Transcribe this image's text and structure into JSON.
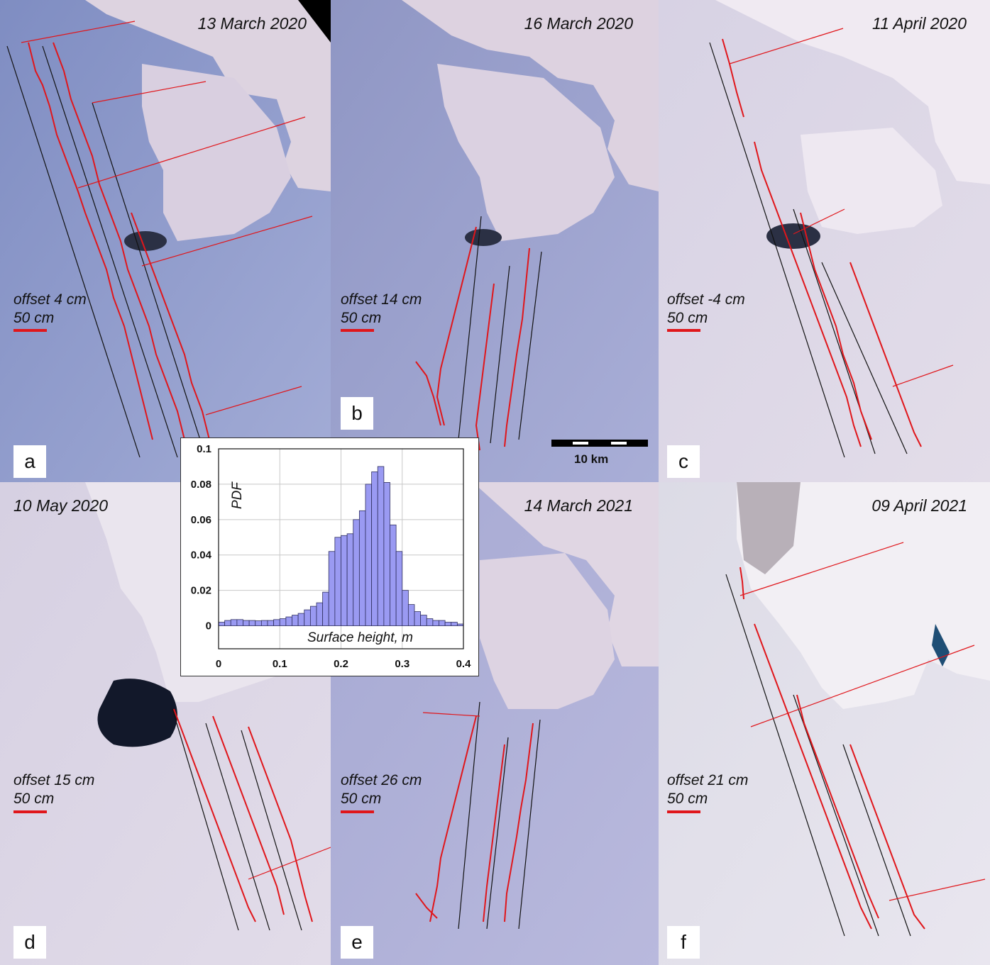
{
  "panels": [
    {
      "id": "a",
      "date": "13 March 2020",
      "offset": "offset 4 cm",
      "scale": "50 cm"
    },
    {
      "id": "b",
      "date": "16 March 2020",
      "offset": "offset 14 cm",
      "scale": "50 cm"
    },
    {
      "id": "c",
      "date": "11 April 2020",
      "offset": "offset -4 cm",
      "scale": "50 cm"
    },
    {
      "id": "d",
      "date": "10 May 2020",
      "offset": "offset 15 cm",
      "scale": "50 cm"
    },
    {
      "id": "e",
      "date": "14 March 2021",
      "offset": "offset 26 cm",
      "scale": "50 cm"
    },
    {
      "id": "f",
      "date": "09 April 2021",
      "offset": "offset 21 cm",
      "scale": "50 cm"
    }
  ],
  "map_scale_label": "10 km",
  "colors": {
    "track_profile": "#e0161b",
    "track_line": "#111111",
    "histogram_fill": "#9a9af2",
    "histogram_edge": "#303060"
  },
  "chart_data": {
    "type": "bar",
    "title": "",
    "xlabel": "Surface height, m",
    "ylabel": "PDF",
    "xlim": [
      0,
      0.4
    ],
    "ylim": [
      -0.013,
      0.1
    ],
    "xticks": [
      "0",
      "0.1",
      "0.2",
      "0.3",
      "0.4"
    ],
    "yticks": [
      "0",
      "0.02",
      "0.04",
      "0.06",
      "0.08",
      "0.1"
    ],
    "grid": true,
    "bin_width": 0.01,
    "bin_starts": [
      0,
      0.01,
      0.02,
      0.03,
      0.04,
      0.05,
      0.06,
      0.07,
      0.08,
      0.09,
      0.1,
      0.11,
      0.12,
      0.13,
      0.14,
      0.15,
      0.16,
      0.17,
      0.18,
      0.19,
      0.2,
      0.21,
      0.22,
      0.23,
      0.24,
      0.25,
      0.26,
      0.27,
      0.28,
      0.29,
      0.3,
      0.31,
      0.32,
      0.33,
      0.34,
      0.35,
      0.36,
      0.37,
      0.38,
      0.39
    ],
    "values": [
      0.002,
      0.003,
      0.0035,
      0.0035,
      0.003,
      0.003,
      0.0028,
      0.003,
      0.003,
      0.0035,
      0.004,
      0.005,
      0.006,
      0.007,
      0.009,
      0.011,
      0.013,
      0.019,
      0.042,
      0.05,
      0.051,
      0.052,
      0.06,
      0.065,
      0.08,
      0.087,
      0.09,
      0.081,
      0.057,
      0.042,
      0.02,
      0.012,
      0.008,
      0.006,
      0.004,
      0.003,
      0.003,
      0.002,
      0.002,
      0.001
    ]
  }
}
